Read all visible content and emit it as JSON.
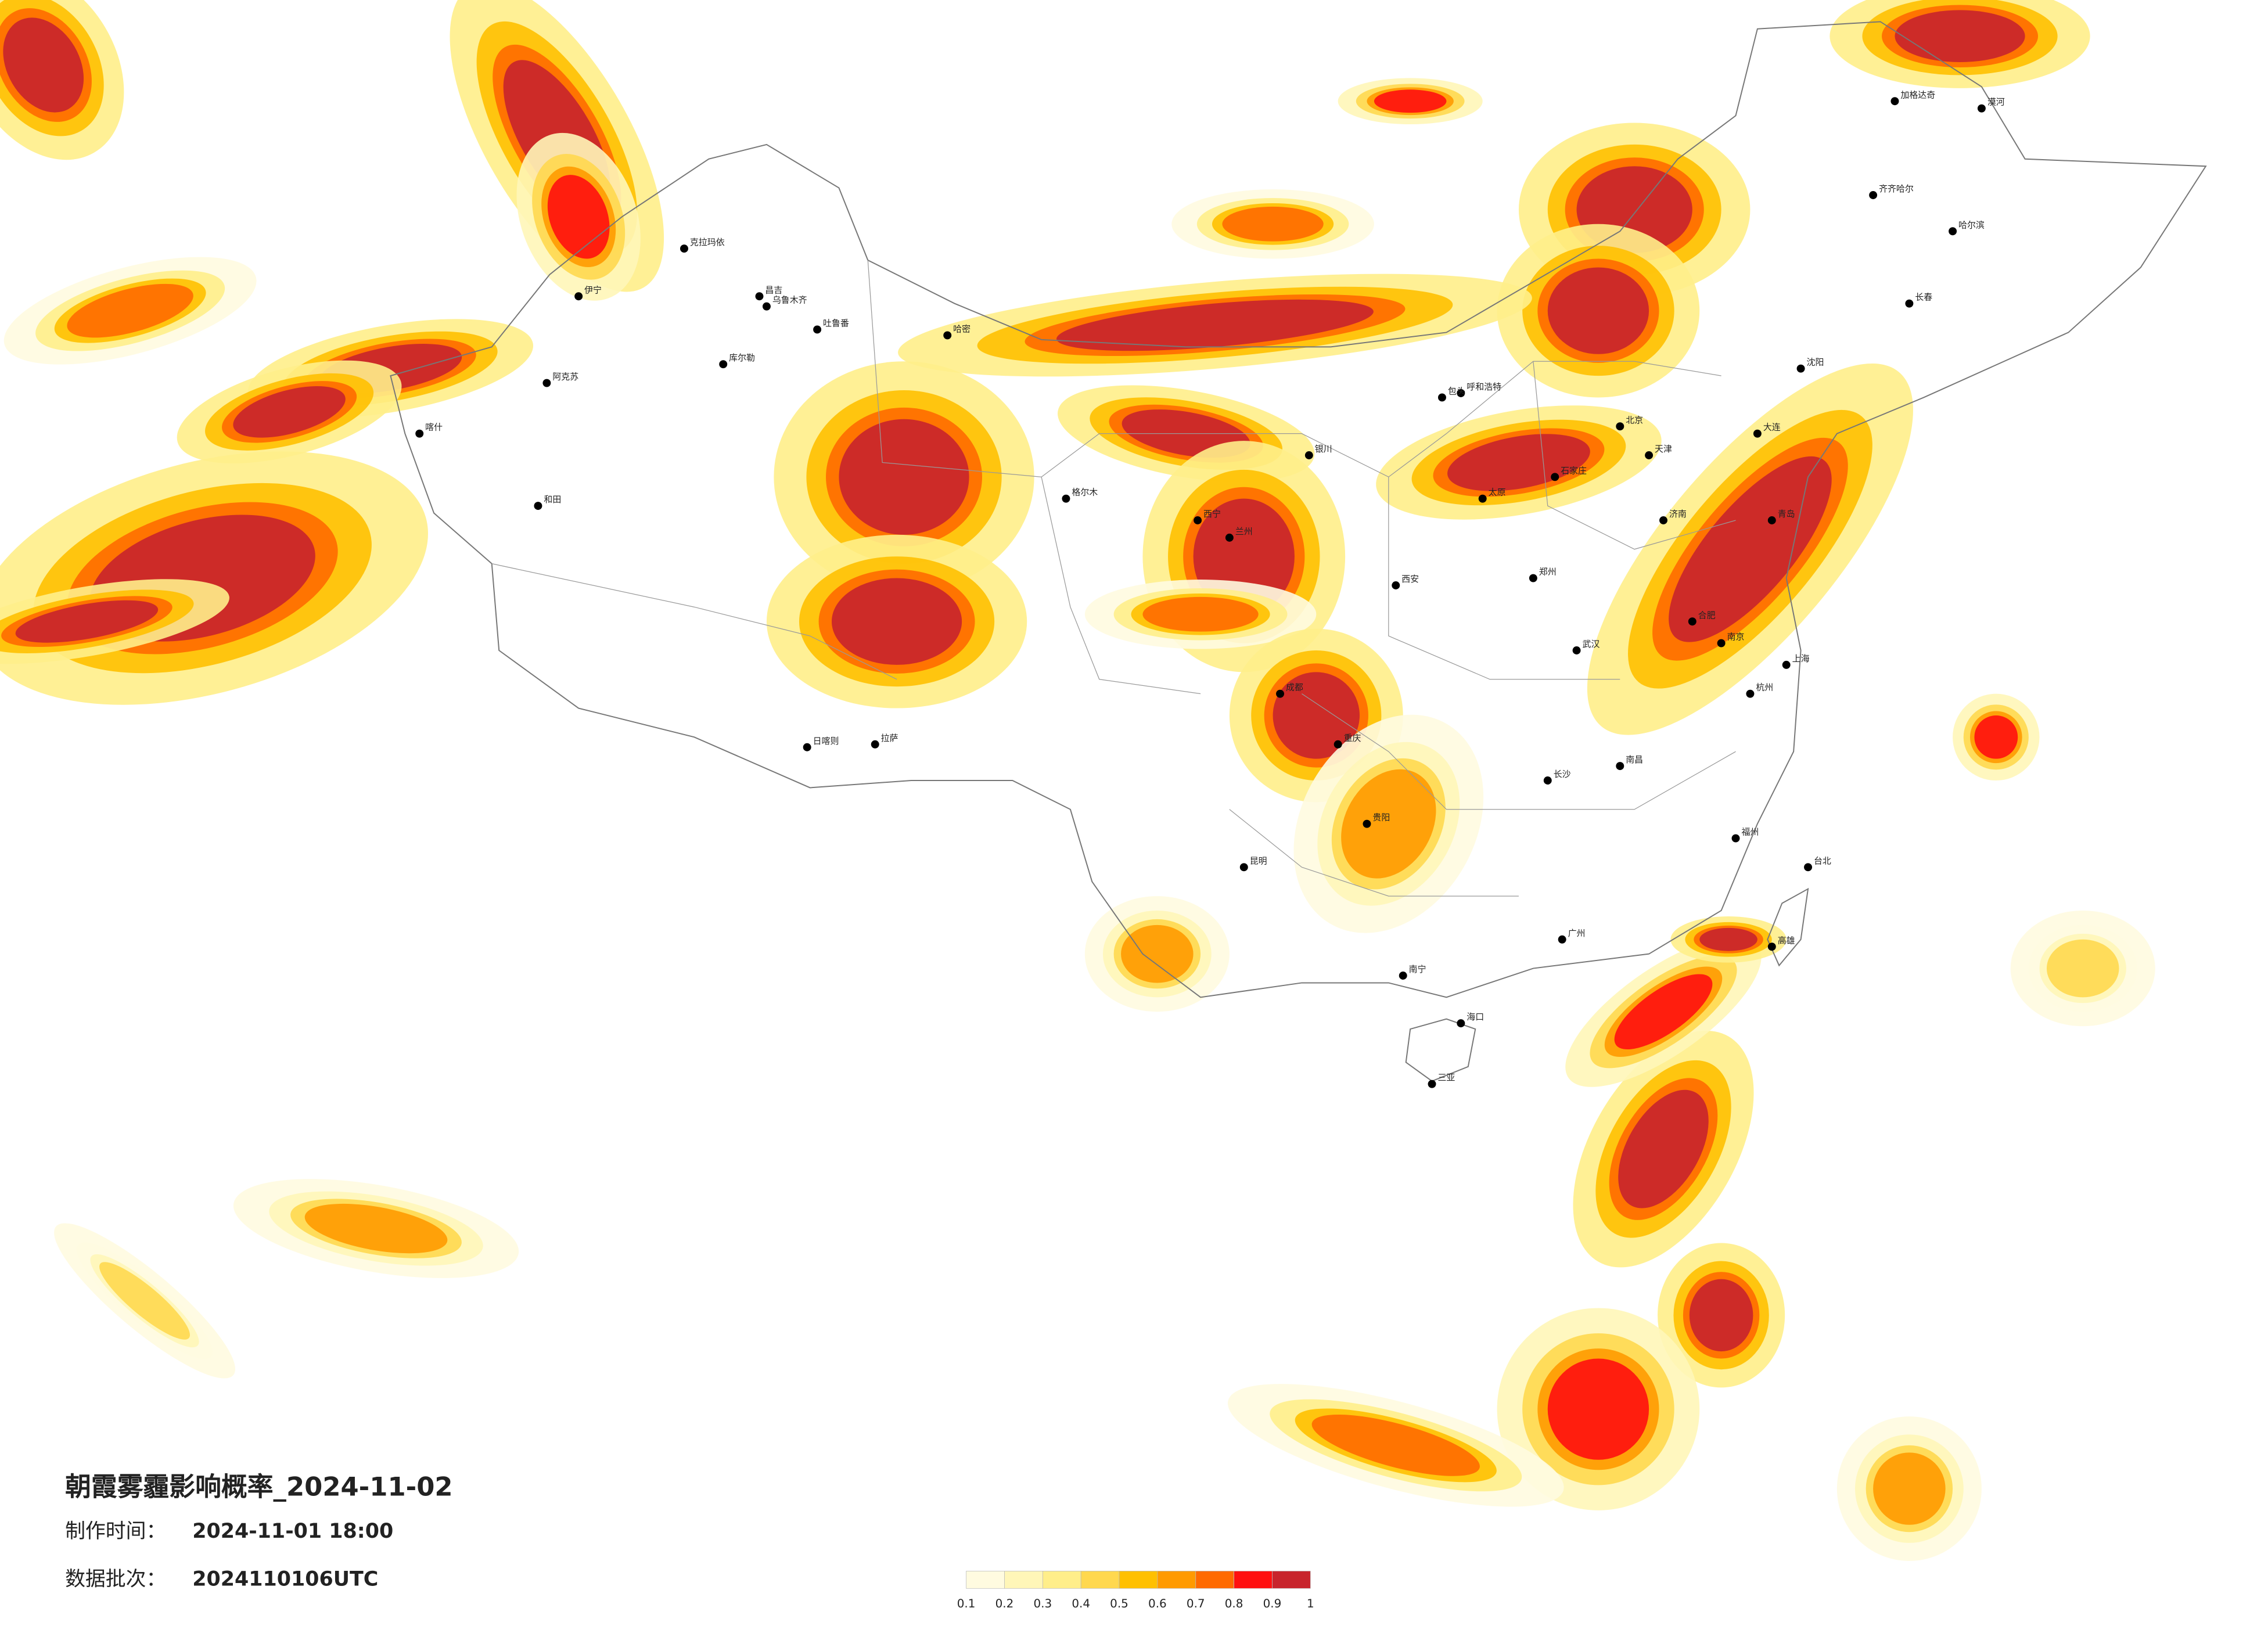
{
  "title": "朝霞雾霾影响概率_2024-11-02",
  "made_time": {
    "label": "制作时间：",
    "value": "2024-11-01 18:00"
  },
  "batch": {
    "label": "数据批次：",
    "value": "2024110106UTC"
  },
  "legend": {
    "colors": [
      "#fffbe0",
      "#fff6b8",
      "#ffee8a",
      "#ffd84f",
      "#ffc000",
      "#ff9a00",
      "#ff6a00",
      "#ff1010",
      "#c8242c"
    ],
    "ticks": [
      0.1,
      0.2,
      0.3,
      0.4,
      0.5,
      0.6,
      0.7,
      0.8,
      0.9,
      1
    ]
  },
  "cities": [
    "克拉玛依",
    "昌吉",
    "乌鲁木齐",
    "吐鲁番",
    "哈密",
    "伊宁",
    "阿克苏",
    "喀什",
    "和田",
    "库尔勒",
    "格尔木",
    "拉萨",
    "日喀则",
    "西宁",
    "兰州",
    "银川",
    "呼和浩特",
    "包头",
    "北京",
    "天津",
    "石家庄",
    "太原",
    "济南",
    "郑州",
    "西安",
    "成都",
    "重庆",
    "武汉",
    "长沙",
    "南昌",
    "合肥",
    "南京",
    "上海",
    "杭州",
    "福州",
    "广州",
    "南宁",
    "海口",
    "贵阳",
    "昆明",
    "沈阳",
    "长春",
    "哈尔滨",
    "大连",
    "青岛",
    "台北",
    "高雄",
    "齐齐哈尔",
    "加格达奇",
    "漠河",
    "三亚"
  ]
}
